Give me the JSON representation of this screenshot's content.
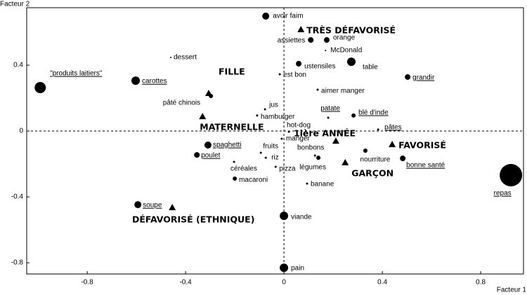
{
  "chart_data": {
    "type": "scatter",
    "x_label": "Facteur 1",
    "y_label": "Facteur 2",
    "xlim": [
      -1.046,
      0.974
    ],
    "ylim": [
      -0.868,
      0.749
    ],
    "xticks": [
      -0.8,
      -0.4,
      0,
      0.4,
      0.8
    ],
    "yticks": [
      -0.8,
      -0.4,
      0,
      0.4
    ],
    "color": "#000000",
    "points": [
      {
        "label": "avoir faim",
        "x": -0.074,
        "y": 0.698,
        "marker": "circle",
        "size": 5,
        "underline": false
      },
      {
        "label": "assiettes",
        "x": 0.109,
        "y": 0.553,
        "marker": "circle",
        "size": 4,
        "underline": false
      },
      {
        "label": "orange",
        "x": 0.174,
        "y": 0.553,
        "marker": "circle",
        "size": 4,
        "underline": false
      },
      {
        "label": "McDonald",
        "x": 0.169,
        "y": 0.489,
        "marker": "dot",
        "size": 1,
        "underline": false
      },
      {
        "label": "table",
        "x": 0.274,
        "y": 0.421,
        "marker": "circle",
        "size": 6,
        "underline": false
      },
      {
        "label": "ustensiles",
        "x": 0.06,
        "y": 0.409,
        "marker": "circle",
        "size": 4,
        "underline": false
      },
      {
        "label": "est bon",
        "x": -0.017,
        "y": 0.345,
        "marker": "dot",
        "size": 1.5,
        "underline": false
      },
      {
        "label": "grandir",
        "x": 0.503,
        "y": 0.328,
        "marker": "circle",
        "size": 4,
        "underline": true
      },
      {
        "label": "dessert",
        "x": -0.46,
        "y": 0.447,
        "marker": "dot",
        "size": 1,
        "underline": false
      },
      {
        "label": "\"produits laitiers\"",
        "x": -0.991,
        "y": 0.264,
        "marker": "circle",
        "size": 8,
        "underline": true
      },
      {
        "label": "carottes",
        "x": -0.603,
        "y": 0.306,
        "marker": "circle",
        "size": 6,
        "underline": true
      },
      {
        "label": "aimer manger",
        "x": 0.137,
        "y": 0.251,
        "marker": "dot",
        "size": 1.5,
        "underline": false
      },
      {
        "label": "pâté chinois",
        "x": -0.297,
        "y": 0.213,
        "marker": "circle",
        "size": 3,
        "underline": false
      },
      {
        "label": "jus",
        "x": -0.077,
        "y": 0.132,
        "marker": "dot",
        "size": 1.5,
        "underline": false
      },
      {
        "label": "hamburger",
        "x": -0.109,
        "y": 0.094,
        "marker": "dot",
        "size": 1.5,
        "underline": false
      },
      {
        "label": "patate",
        "x": 0.18,
        "y": 0.081,
        "marker": "dot",
        "size": 1.5,
        "underline": true
      },
      {
        "label": "blé d'inde",
        "x": 0.283,
        "y": 0.094,
        "marker": "circle",
        "size": 3,
        "underline": true
      },
      {
        "label": "hot-dog",
        "x": 0.02,
        "y": -0.004,
        "marker": "dot",
        "size": 1.5,
        "underline": false
      },
      {
        "label": "pâtes",
        "x": 0.383,
        "y": 0.009,
        "marker": "dot",
        "size": 1.5,
        "underline": true
      },
      {
        "label": "manger",
        "x": -0.009,
        "y": -0.047,
        "marker": "dot",
        "size": 1.5,
        "underline": false
      },
      {
        "label": "spaghetti",
        "x": -0.309,
        "y": -0.085,
        "marker": "circle",
        "size": 5,
        "underline": true
      },
      {
        "label": "poulet",
        "x": -0.354,
        "y": -0.145,
        "marker": "circle",
        "size": 4,
        "underline": true
      },
      {
        "label": "fruits",
        "x": -0.094,
        "y": -0.132,
        "marker": "dot",
        "size": 1.5,
        "underline": false
      },
      {
        "label": "riz",
        "x": -0.074,
        "y": -0.162,
        "marker": "dot",
        "size": 1.5,
        "underline": false
      },
      {
        "label": "bonbons",
        "x": 0.126,
        "y": -0.149,
        "marker": "dot",
        "size": 1.5,
        "underline": false
      },
      {
        "label": "légumes",
        "x": 0.14,
        "y": -0.162,
        "marker": "circle",
        "size": 3,
        "underline": false
      },
      {
        "label": "nourriture",
        "x": 0.331,
        "y": -0.119,
        "marker": "circle",
        "size": 3,
        "underline": false
      },
      {
        "label": "bonne santé",
        "x": 0.483,
        "y": -0.166,
        "marker": "circle",
        "size": 4,
        "underline": true
      },
      {
        "label": "céréales",
        "x": -0.203,
        "y": -0.187,
        "marker": "dot",
        "size": 1.5,
        "underline": false
      },
      {
        "label": "pizza",
        "x": -0.034,
        "y": -0.217,
        "marker": "dot",
        "size": 1.5,
        "underline": false
      },
      {
        "label": "macaroni",
        "x": -0.2,
        "y": -0.289,
        "marker": "circle",
        "size": 3,
        "underline": false
      },
      {
        "label": "banane",
        "x": 0.094,
        "y": -0.319,
        "marker": "dot",
        "size": 1.5,
        "underline": false
      },
      {
        "label": "repas",
        "x": 0.923,
        "y": -0.268,
        "marker": "circle",
        "size": 16,
        "underline": true
      },
      {
        "label": "soupe",
        "x": -0.594,
        "y": -0.447,
        "marker": "circle",
        "size": 5,
        "underline": true
      },
      {
        "label": "viande",
        "x": 0.0,
        "y": -0.515,
        "marker": "circle",
        "size": 6,
        "underline": false
      },
      {
        "label": "pain",
        "x": 0.0,
        "y": -0.83,
        "marker": "circle",
        "size": 6,
        "underline": false
      },
      {
        "label": "TRÈS DÉFAVORISÉ",
        "x": 0.069,
        "y": 0.617,
        "marker": "triangle",
        "size": 5,
        "underline": false
      },
      {
        "label": "FILLE",
        "x": -0.306,
        "y": 0.23,
        "marker": "triangle",
        "size": 5,
        "underline": false
      },
      {
        "label": "MATERNELLE",
        "x": -0.331,
        "y": 0.089,
        "marker": "triangle",
        "size": 5,
        "underline": false
      },
      {
        "label": "1ière ANNÉE",
        "x": 0.211,
        "y": -0.06,
        "marker": "triangle",
        "size": 5,
        "underline": false
      },
      {
        "label": "FAVORISÉ",
        "x": 0.44,
        "y": -0.081,
        "marker": "triangle",
        "size": 5,
        "underline": false
      },
      {
        "label": "GARÇON",
        "x": 0.249,
        "y": -0.191,
        "marker": "triangle",
        "size": 5,
        "underline": false
      },
      {
        "label": "DÉFAVORISÉ (ETHNIQUE)",
        "x": -0.454,
        "y": -0.464,
        "marker": "triangle",
        "size": 5,
        "underline": false
      }
    ]
  }
}
